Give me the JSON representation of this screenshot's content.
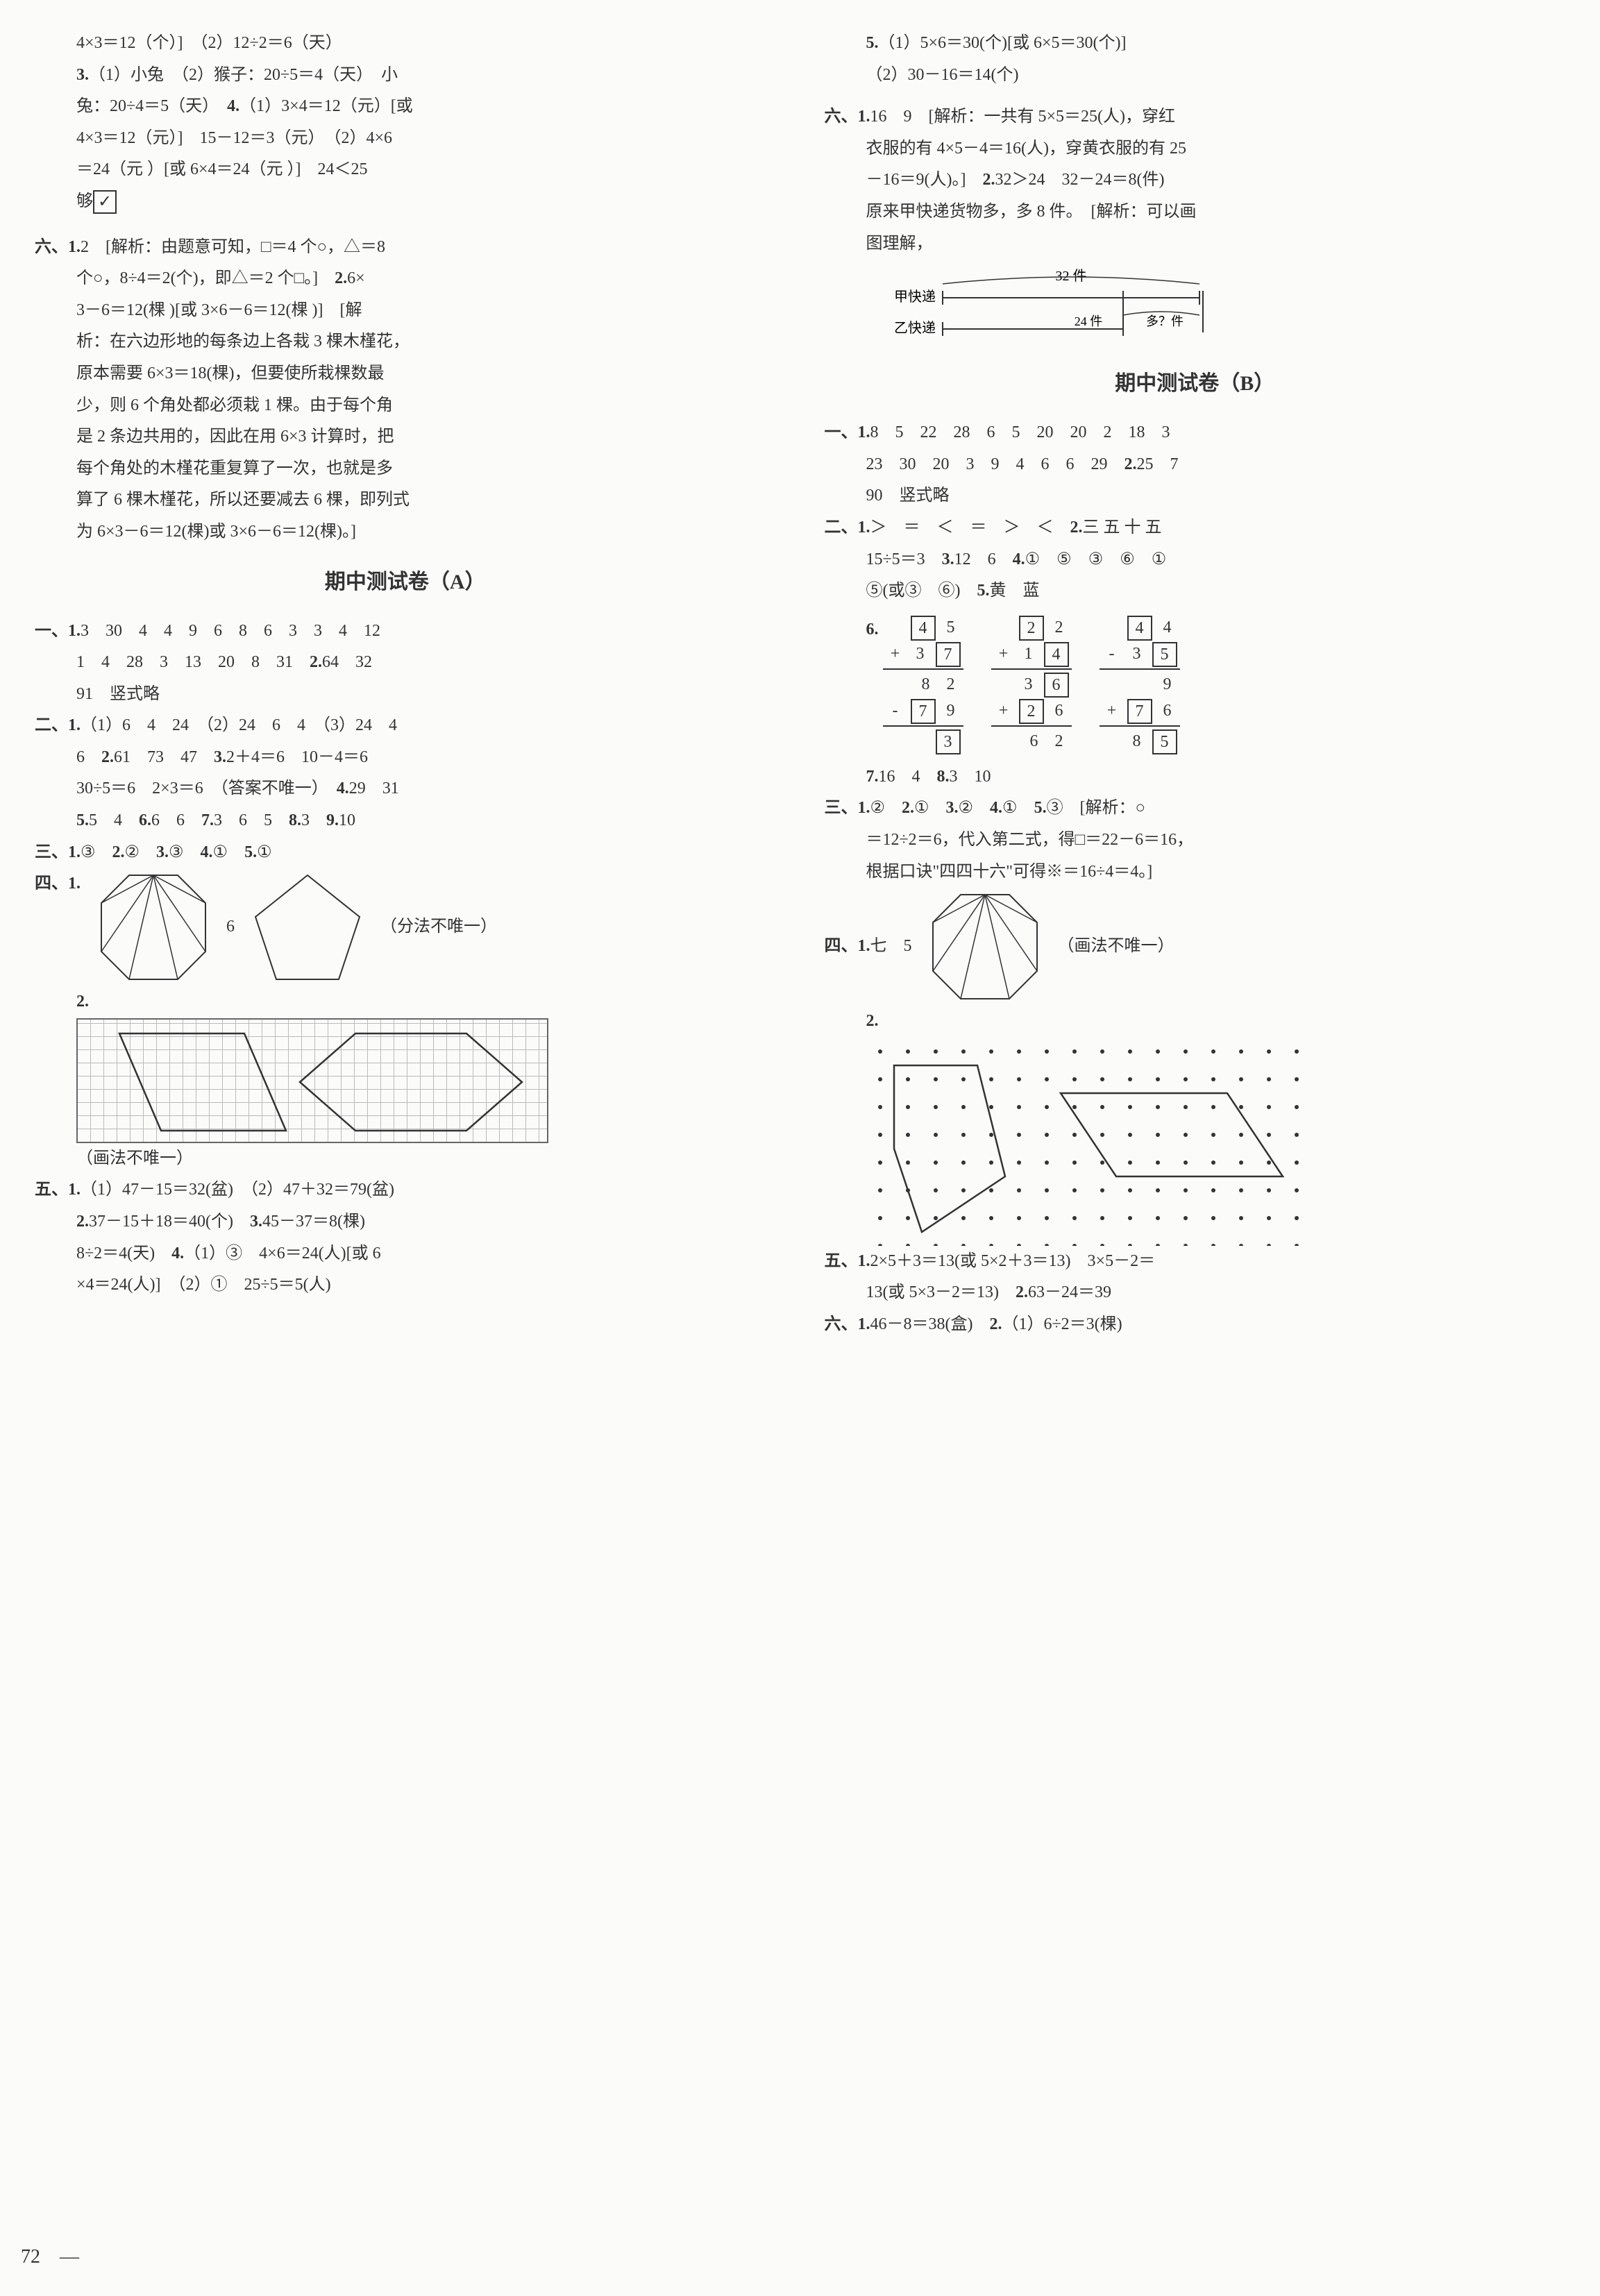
{
  "left": {
    "p1": "4×3＝12（个）]　（2）12÷2＝6（天）",
    "p2_a": "3.",
    "p2_b": "（1）小兔　（2）猴子：20÷5＝4（天）　小",
    "p3": "兔：20÷4＝5（天）　",
    "p3_b": "4.",
    "p3_c": "（1）3×4＝12（元）[或",
    "p4": "4×3＝12（元）]　15－12＝3（元）　（2）4×6",
    "p5": "＝24（元 ）[或 6×4＝24（元 ）]　24＜25",
    "p6": "够",
    "six": "六、",
    "six1a": "1.",
    "six1b": "2　[解析：由题意可知，□＝4 个○，△＝8",
    "six2": "个○，8÷4＝2(个)，即△＝2 个□。]　",
    "six2b": "2.",
    "six2c": "6×",
    "six3": "3－6＝12(棵 )[或 3×6－6＝12(棵 )]　[解",
    "six4": "析：在六边形地的每条边上各栽 3 棵木槿花，",
    "six5": "原本需要 6×3＝18(棵)，但要使所栽棵数最",
    "six6": "少，则 6 个角处都必须栽 1 棵。由于每个角",
    "six7": "是 2 条边共用的，因此在用 6×3 计算时，把",
    "six8": "每个角处的木槿花重复算了一次，也就是多",
    "six9": "算了 6 棵木槿花，所以还要减去 6 棵，即列式",
    "six10": "为 6×3－6＝12(棵)或 3×6－6＝12(棵)。]",
    "titleA": "期中测试卷（A）",
    "a1_label": "一、",
    "a1_1": "1.",
    "a1_vals": "3　30　4　4　9　6　8　6　3　3　4　12",
    "a1_vals2": "1　4　28　3　13　20　8　31　",
    "a1_2": "2.",
    "a1_2v": "64　32",
    "a1_vals3": "91　竖式略",
    "a2_label": "二、",
    "a2_1": "1.",
    "a2_1v": "（1）6　4　24　（2）24　6　4　（3）24　4",
    "a2_1v2": "6　",
    "a2_2": "2.",
    "a2_2v": "61　73　47　",
    "a2_3": "3.",
    "a2_3v": "2＋4＝6　10－4＝6",
    "a2_3v2": "30÷5＝6　2×3＝6　（答案不唯一）　",
    "a2_4": "4.",
    "a2_4v": "29　31",
    "a2_5": "5.",
    "a2_5v": "5　4　",
    "a2_6": "6.",
    "a2_6v": "6　6　",
    "a2_7": "7.",
    "a2_7v": "3　6　5　",
    "a2_8": "8.",
    "a2_8v": "3　",
    "a2_9": "9.",
    "a2_9v": "10",
    "a3_label": "三、",
    "a3_1": "1.",
    "a3_1v": "③　",
    "a3_2": "2.",
    "a3_2v": "②　",
    "a3_3": "3.",
    "a3_3v": "③　",
    "a3_4": "4.",
    "a3_4v": "①　",
    "a3_5": "5.",
    "a3_5v": "①",
    "a4_label": "四、",
    "a4_1": "1.",
    "a4_mid": "6",
    "a4_note": "（分法不唯一）",
    "a4_2": "2.",
    "a4_note2": "（画法不唯一）",
    "a5_label": "五、",
    "a5_1": "1.",
    "a5_1v": "（1）47－15＝32(盆)　（2）47＋32＝79(盆)",
    "a5_2": "2.",
    "a5_2v": "37－15＋18＝40(个)　",
    "a5_3": "3.",
    "a5_3v": "45－37＝8(棵)",
    "a5_3v2": "8÷2＝4(天)　",
    "a5_4": "4.",
    "a5_4v": "（1）③　4×6＝24(人)[或 6",
    "a5_4v2": "×4＝24(人)]　（2）①　25÷5＝5(人)"
  },
  "right": {
    "r5": "5.",
    "r5v": "（1）5×6＝30(个)[或 6×5＝30(个)]",
    "r5v2": "（2）30－16＝14(个)",
    "r6_label": "六、",
    "r6_1": "1.",
    "r6_1v": "16　9　[解析：一共有 5×5＝25(人)，穿红",
    "r6_2": "衣服的有 4×5－4＝16(人)，穿黄衣服的有 25",
    "r6_3": "－16＝9(人)。]　",
    "r6_2b": "2.",
    "r6_2bv": "32＞24　32－24＝8(件)",
    "r6_4": "原来甲快递货物多，多 8 件。　[解析：可以画",
    "r6_5": "图理解，",
    "bar_jia": "甲快递",
    "bar_yi": "乙快递",
    "bar_32": "32 件",
    "bar_24": "24 件",
    "bar_q": "多？件",
    "titleB": "期中测试卷（B）",
    "b1_label": "一、",
    "b1_1": "1.",
    "b1_1v": "8　5　22　28　6　5　20　20　2　18　3",
    "b1_1v2": "23　30　20　3　9　4　6　6　29　",
    "b1_2": "2.",
    "b1_2v": "25　7",
    "b1_2v2": "90　竖式略",
    "b2_label": "二、",
    "b2_1": "1.",
    "b2_1v": "＞　＝　＜　＝　＞　＜　",
    "b2_2": "2.",
    "b2_2v": "三 五 十 五",
    "b2_2v2": "15÷5＝3　",
    "b2_3": "3.",
    "b2_3v": "12　6　",
    "b2_4": "4.",
    "b2_4v": "①　⑤　③　⑥　①",
    "b2_4v2": "⑤(或③　⑥)　",
    "b2_5": "5.",
    "b2_5v": "黄　蓝",
    "b2_6": "6.",
    "calc1": {
      "r1": [
        "",
        "4",
        "5"
      ],
      "r2": [
        "+",
        "3",
        "7"
      ],
      "r3": [
        "",
        "8",
        "2"
      ],
      "r4": [
        "-",
        "7",
        "9"
      ],
      "r5": [
        "",
        "",
        "3"
      ],
      "boxes": [
        [
          0,
          1
        ],
        [
          1,
          2
        ],
        [
          3,
          1
        ],
        [
          4,
          2
        ]
      ]
    },
    "calc2": {
      "r1": [
        "",
        "2",
        "2"
      ],
      "r2": [
        "+",
        "1",
        "4"
      ],
      "r3": [
        "",
        "3",
        "6"
      ],
      "r4": [
        "+",
        "2",
        "6"
      ],
      "r5": [
        "",
        "6",
        "2"
      ],
      "boxes": [
        [
          0,
          1
        ],
        [
          1,
          2
        ],
        [
          2,
          2
        ],
        [
          3,
          1
        ]
      ]
    },
    "calc3": {
      "r1": [
        "",
        "4",
        "4"
      ],
      "r2": [
        "-",
        "3",
        "5"
      ],
      "r3": [
        "",
        "",
        "9"
      ],
      "r4": [
        "+",
        "7",
        "6"
      ],
      "r5": [
        "",
        "8",
        "5"
      ],
      "boxes": [
        [
          0,
          1
        ],
        [
          1,
          2
        ],
        [
          3,
          1
        ],
        [
          4,
          2
        ]
      ]
    },
    "b2_7": "7.",
    "b2_7v": "16　4　",
    "b2_8": "8.",
    "b2_8v": "3　10",
    "b3_label": "三、",
    "b3_1": "1.",
    "b3_1v": "②　",
    "b3_2": "2.",
    "b3_2v": "①　",
    "b3_3": "3.",
    "b3_3v": "②　",
    "b3_4": "4.",
    "b3_4v": "①　",
    "b3_5": "5.",
    "b3_5v": "③　[解析：○",
    "b3_6": "＝12÷2＝6，代入第二式，得□＝22－6＝16，",
    "b3_7": "根据口诀\"四四十六\"可得※＝16÷4＝4。]",
    "b4_label": "四、",
    "b4_1": "1.",
    "b4_1v": "七　5",
    "b4_note": "（画法不唯一）",
    "b4_2": "2.",
    "b5_label": "五、",
    "b5_1": "1.",
    "b5_1v": "2×5＋3＝13(或 5×2＋3＝13)　3×5－2＝",
    "b5_1v2": "13(或 5×3－2＝13)　",
    "b5_2": "2.",
    "b5_2v": "63－24＝39",
    "b6_label": "六、",
    "b6_1": "1.",
    "b6_1v": "46－8＝38(盒)　",
    "b6_2": "2.",
    "b6_2v": "（1）6÷2＝3(棵)"
  },
  "pagenum": "72　—"
}
